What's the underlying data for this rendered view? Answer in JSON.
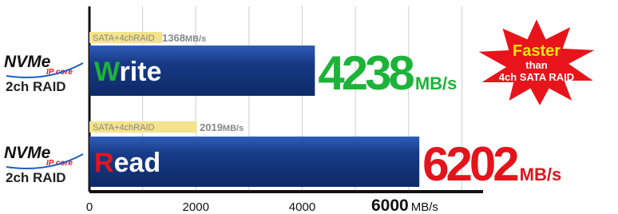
{
  "chart_data": {
    "type": "bar",
    "orientation": "horizontal",
    "categories": [
      "Write",
      "Read"
    ],
    "row_label": {
      "brand": "NVMe",
      "sub": "IP core",
      "text": "2ch RAID"
    },
    "series": [
      {
        "name": "SATA+4chRAID",
        "color": "#f3e38a",
        "values": [
          1368,
          2019
        ]
      },
      {
        "color": "#173a86",
        "values": [
          4238,
          6202
        ],
        "label_colors": [
          "#1db33a",
          "#e3141b"
        ]
      }
    ],
    "unit": "MB/s",
    "xlim": [
      0,
      7400
    ],
    "xticks": [
      0,
      2000,
      4000,
      6000
    ],
    "xminorticks": [
      1000,
      3000,
      5000,
      7000
    ],
    "grid": true,
    "annotation": [
      "Faster",
      "than",
      "4ch SATA RAID"
    ]
  }
}
